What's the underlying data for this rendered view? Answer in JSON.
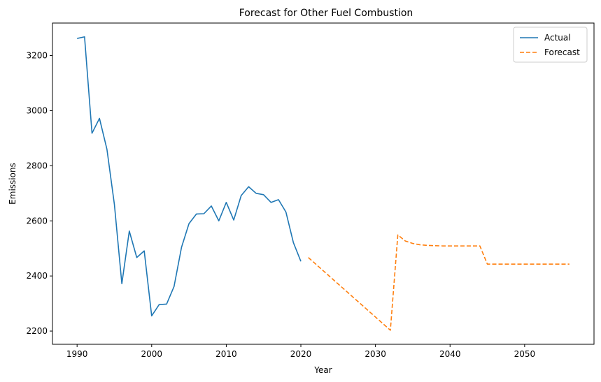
{
  "chart_data": {
    "type": "line",
    "title": "Forecast for Other Fuel Combustion",
    "xlabel": "Year",
    "ylabel": "Emissions",
    "xlim": [
      1986.7,
      2059.3
    ],
    "ylim": [
      2152,
      3318
    ],
    "xticks": [
      1990,
      2000,
      2010,
      2020,
      2030,
      2040,
      2050
    ],
    "yticks": [
      2200,
      2400,
      2600,
      2800,
      3000,
      3200
    ],
    "legend_position": "top-right",
    "grid": false,
    "series": [
      {
        "name": "Actual",
        "color": "#1f77b4",
        "style": "solid",
        "x": [
          1990,
          1991,
          1992,
          1993,
          1994,
          1995,
          1996,
          1997,
          1998,
          1999,
          2000,
          2001,
          2002,
          2003,
          2004,
          2005,
          2006,
          2007,
          2008,
          2009,
          2010,
          2011,
          2012,
          2013,
          2014,
          2015,
          2016,
          2017,
          2018,
          2019,
          2020
        ],
        "y": [
          3262,
          3268,
          2918,
          2972,
          2860,
          2660,
          2372,
          2563,
          2467,
          2491,
          2255,
          2296,
          2298,
          2362,
          2504,
          2590,
          2625,
          2626,
          2654,
          2600,
          2667,
          2603,
          2692,
          2724,
          2700,
          2695,
          2667,
          2677,
          2632,
          2521,
          2453
        ]
      },
      {
        "name": "Forecast",
        "color": "#ff7f0e",
        "style": "dashed",
        "x": [
          2021,
          2022,
          2023,
          2024,
          2025,
          2026,
          2027,
          2028,
          2029,
          2030,
          2031,
          2032,
          2033,
          2034,
          2035,
          2036,
          2037,
          2038,
          2039,
          2040,
          2041,
          2042,
          2043,
          2044,
          2045,
          2046,
          2047,
          2048,
          2049,
          2050,
          2051,
          2052,
          2053,
          2054,
          2055,
          2056
        ],
        "y": [
          2467,
          2443,
          2419,
          2395,
          2371,
          2347,
          2323,
          2299,
          2275,
          2251,
          2227,
          2203,
          2549,
          2527,
          2518,
          2513,
          2511,
          2510,
          2509,
          2509,
          2509,
          2509,
          2509,
          2509,
          2443,
          2443,
          2443,
          2443,
          2443,
          2443,
          2443,
          2443,
          2443,
          2443,
          2443,
          2443
        ]
      }
    ]
  }
}
